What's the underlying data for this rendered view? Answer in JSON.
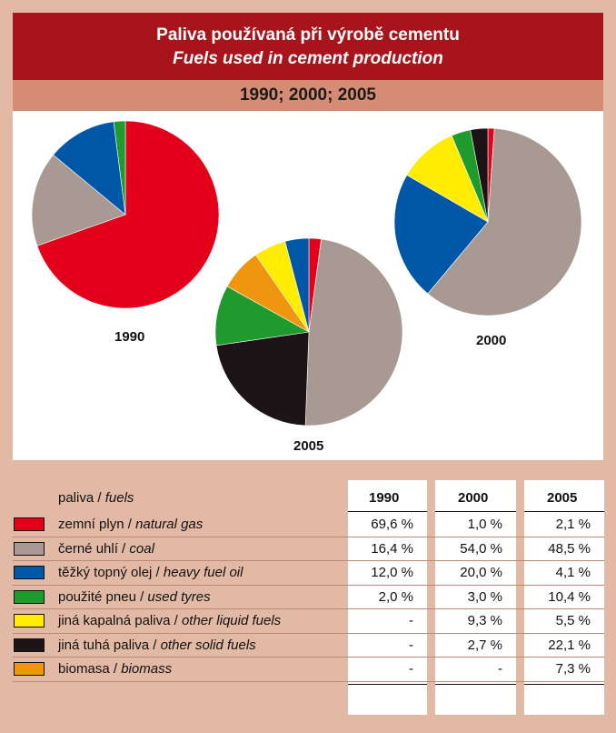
{
  "title": {
    "cz": "Paliva používaná při výrobě cementu",
    "en": "Fuels used in cement production"
  },
  "years_label": "1990; 2000; 2005",
  "colors": {
    "natural_gas": "#e3001b",
    "coal": "#a89a92",
    "heavy_fuel_oil": "#0057a8",
    "used_tyres": "#1f9a2c",
    "other_liquid_fuels": "#ffec00",
    "other_solid_fuels": "#1c1416",
    "biomass": "#f0960e"
  },
  "chart_data": [
    {
      "type": "pie",
      "title": "1990",
      "labels": [
        "zemní plyn",
        "černé uhlí",
        "těžký topný olej",
        "použité pneu"
      ],
      "values": [
        69.6,
        16.4,
        12.0,
        2.0
      ]
    },
    {
      "type": "pie",
      "title": "2000",
      "labels": [
        "zemní plyn",
        "černé uhlí",
        "těžký topný olej",
        "jiná kapalná paliva",
        "použité pneu",
        "jiná tuhá paliva"
      ],
      "values": [
        1.0,
        54.0,
        20.0,
        9.3,
        3.0,
        2.7
      ]
    },
    {
      "type": "pie",
      "title": "2005",
      "labels": [
        "zemní plyn",
        "černé uhlí",
        "jiná tuhá paliva",
        "použité pneu",
        "biomasa",
        "jiná kapalná paliva",
        "těžký topný olej"
      ],
      "values": [
        2.1,
        48.5,
        22.1,
        10.4,
        7.3,
        5.5,
        4.1
      ]
    }
  ],
  "table": {
    "fuels_header_cz": "paliva",
    "fuels_header_en": "fuels",
    "years": [
      "1990",
      "2000",
      "2005"
    ],
    "rows": [
      {
        "cz": "zemní plyn",
        "en": "natural gas",
        "color": "#e3001b",
        "values": [
          "69,6 %",
          "1,0 %",
          "2,1 %"
        ]
      },
      {
        "cz": "černé uhlí",
        "en": "coal",
        "color": "#a89a92",
        "values": [
          "16,4 %",
          "54,0 %",
          "48,5 %"
        ]
      },
      {
        "cz": "těžký topný olej",
        "en": "heavy fuel oil",
        "color": "#0057a8",
        "values": [
          "12,0 %",
          "20,0 %",
          "4,1 %"
        ]
      },
      {
        "cz": "použité pneu",
        "en": "used tyres",
        "color": "#1f9a2c",
        "values": [
          "2,0 %",
          "3,0 %",
          "10,4 %"
        ]
      },
      {
        "cz": "jiná kapalná paliva",
        "en": "other liquid fuels",
        "color": "#ffec00",
        "values": [
          "-",
          "9,3 %",
          "5,5 %"
        ]
      },
      {
        "cz": "jiná tuhá paliva",
        "en": "other solid fuels",
        "color": "#1c1416",
        "values": [
          "-",
          "2,7 %",
          "22,1 %"
        ]
      },
      {
        "cz": "biomasa",
        "en": "biomass",
        "color": "#f0960e",
        "values": [
          "-",
          "-",
          "7,3 %"
        ]
      }
    ]
  }
}
